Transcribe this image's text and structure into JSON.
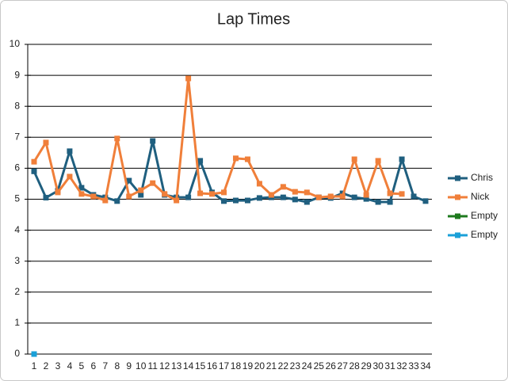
{
  "chart_data": {
    "type": "line",
    "title": "Lap Times",
    "categories": [
      "1",
      "2",
      "3",
      "4",
      "5",
      "6",
      "7",
      "8",
      "9",
      "10",
      "11",
      "12",
      "13",
      "14",
      "15",
      "16",
      "17",
      "18",
      "19",
      "20",
      "21",
      "22",
      "23",
      "24",
      "25",
      "26",
      "27",
      "28",
      "29",
      "30",
      "31",
      "32",
      "33",
      "34"
    ],
    "series": [
      {
        "name": "Chris",
        "color": "#1f5f7f",
        "values": [
          5.9,
          5.05,
          5.27,
          6.55,
          5.37,
          5.14,
          5.06,
          4.94,
          5.6,
          5.14,
          6.88,
          5.14,
          5.06,
          5.06,
          6.24,
          5.22,
          4.94,
          4.96,
          4.96,
          5.04,
          5.06,
          5.06,
          4.99,
          4.91,
          5.06,
          5.04,
          5.19,
          5.06,
          5.01,
          4.91,
          4.91,
          6.29,
          5.09,
          4.94
        ]
      },
      {
        "name": "Nick",
        "color": "#f07f3a",
        "values": [
          6.21,
          6.83,
          5.22,
          5.73,
          5.17,
          5.09,
          4.96,
          6.96,
          5.09,
          5.29,
          5.52,
          5.17,
          4.96,
          8.9,
          5.19,
          5.17,
          5.22,
          6.32,
          6.29,
          5.5,
          5.14,
          5.4,
          5.24,
          5.22,
          5.06,
          5.09,
          5.09,
          6.29,
          5.14,
          6.24,
          5.19,
          5.17,
          null,
          null
        ]
      },
      {
        "name": "Empty",
        "color": "#1e7a1e",
        "values": [
          null,
          null,
          null,
          null,
          null,
          null,
          null,
          null,
          null,
          null,
          null,
          null,
          null,
          null,
          null,
          null,
          null,
          null,
          null,
          null,
          null,
          null,
          null,
          null,
          null,
          null,
          null,
          null,
          null,
          null,
          null,
          null,
          null,
          null
        ]
      },
      {
        "name": "Empty",
        "color": "#1aa0d8",
        "values": [
          0,
          null,
          null,
          null,
          null,
          null,
          null,
          null,
          null,
          null,
          null,
          null,
          null,
          null,
          null,
          null,
          null,
          null,
          null,
          null,
          null,
          null,
          null,
          null,
          null,
          null,
          null,
          null,
          null,
          null,
          null,
          null,
          null,
          null
        ]
      }
    ],
    "ylim": [
      0,
      10
    ],
    "yticks": [
      0,
      1,
      2,
      3,
      4,
      5,
      6,
      7,
      8,
      9,
      10
    ],
    "grid": true,
    "legend": "right"
  }
}
